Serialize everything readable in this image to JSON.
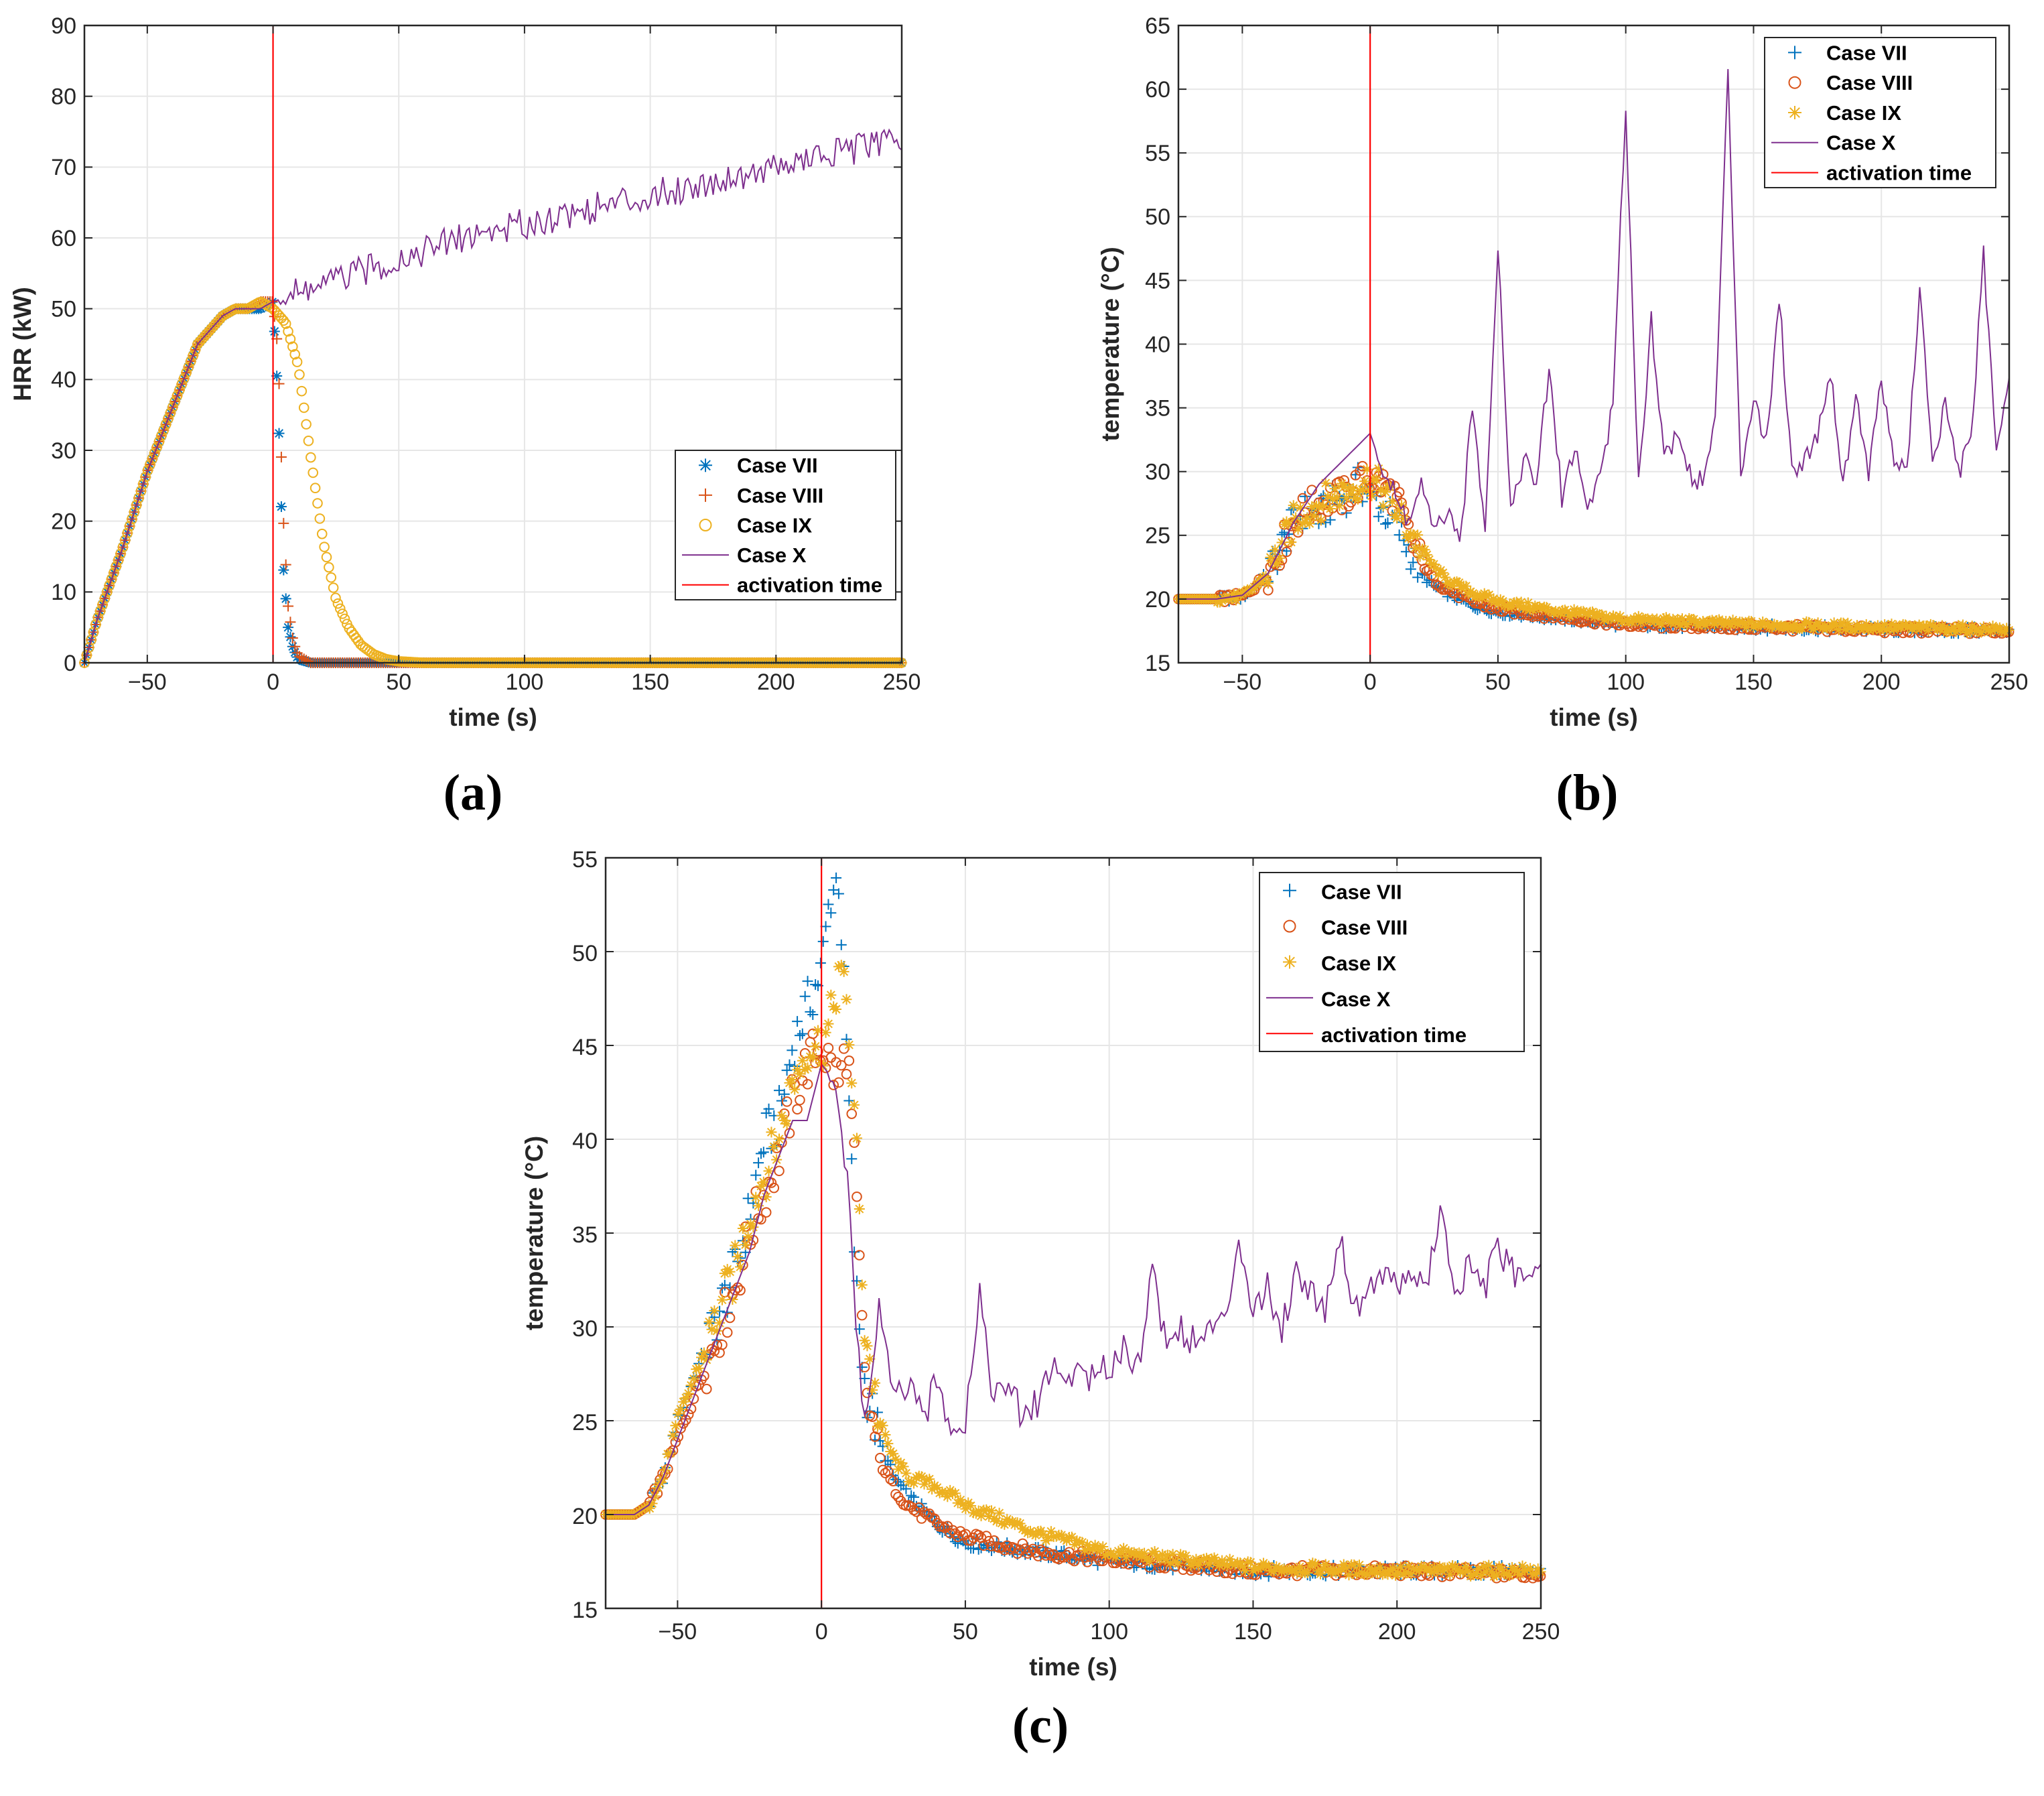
{
  "colors": {
    "case_vii": "#0072BD",
    "case_viii": "#D95319",
    "case_ix": "#EDB120",
    "case_x": "#7E2F8E",
    "activation": "#FF0000",
    "grid": "#E6E6E6",
    "axis": "#262626"
  },
  "chart_data": [
    {
      "id": "a",
      "type": "scatter",
      "panel_label": "(a)",
      "title": "",
      "xlabel": "time (s)",
      "ylabel": "HRR (kW)",
      "xlim": [
        -75,
        250
      ],
      "ylim": [
        0,
        90
      ],
      "xticks": [
        -50,
        0,
        50,
        100,
        150,
        200,
        250
      ],
      "xtick_labels": [
        "−50",
        "0",
        "50",
        "100",
        "150",
        "200",
        "250"
      ],
      "yticks": [
        0,
        10,
        20,
        30,
        40,
        50,
        60,
        70,
        80,
        90
      ],
      "ytick_labels": [
        "0",
        "10",
        "20",
        "30",
        "40",
        "50",
        "60",
        "70",
        "80",
        "90"
      ],
      "grid": true,
      "legend_position": "lower-right",
      "activation_time": 0,
      "series": [
        {
          "name": "Case VII",
          "marker": "asterisk",
          "key": "case_vii",
          "x": [
            -75,
            -70,
            -60,
            -50,
            -40,
            -30,
            -20,
            -15,
            -10,
            -5,
            0,
            2,
            4,
            6,
            8,
            10,
            15,
            20,
            50,
            100,
            150,
            200,
            250
          ],
          "y": [
            0,
            6,
            16,
            27,
            36,
            45,
            49,
            50,
            50,
            50,
            51,
            37,
            14,
            5,
            2,
            0.5,
            0,
            0,
            0,
            0,
            0,
            0,
            0
          ]
        },
        {
          "name": "Case VIII",
          "marker": "plus",
          "key": "case_viii",
          "x": [
            -75,
            -70,
            -60,
            -50,
            -40,
            -30,
            -20,
            -15,
            -10,
            -5,
            0,
            2,
            4,
            6,
            8,
            10,
            15,
            20,
            50,
            100,
            150,
            200,
            250
          ],
          "y": [
            0,
            6,
            16,
            27,
            36,
            45,
            49,
            50,
            50,
            51,
            51,
            44,
            21,
            8,
            3,
            1,
            0,
            0,
            0,
            0,
            0,
            0,
            0
          ]
        },
        {
          "name": "Case IX",
          "marker": "circle",
          "key": "case_ix",
          "x": [
            -75,
            -70,
            -60,
            -50,
            -40,
            -30,
            -20,
            -15,
            -10,
            -5,
            0,
            5,
            10,
            15,
            20,
            25,
            30,
            35,
            40,
            45,
            50,
            60,
            80,
            100,
            150,
            200,
            250
          ],
          "y": [
            0,
            6,
            16,
            27,
            36,
            45,
            49,
            50,
            50,
            51,
            50,
            48,
            42,
            29,
            17,
            9,
            5,
            2.5,
            1.2,
            0.5,
            0.2,
            0,
            0,
            0,
            0,
            0,
            0
          ]
        },
        {
          "name": "Case X",
          "marker": "line",
          "key": "case_x",
          "x": [
            -75,
            -70,
            -60,
            -50,
            -40,
            -30,
            -20,
            -15,
            -10,
            -5,
            0,
            25,
            50,
            75,
            100,
            125,
            150,
            175,
            200,
            225,
            250
          ],
          "y": [
            0,
            6,
            16,
            27,
            36,
            45,
            49,
            50,
            50,
            50,
            51,
            54,
            57,
            60,
            62,
            64,
            66,
            68,
            70,
            72,
            74
          ]
        },
        {
          "name": "activation time",
          "marker": "vline",
          "key": "activation",
          "x": [
            0,
            0
          ],
          "y": [
            0,
            90
          ]
        }
      ]
    },
    {
      "id": "b",
      "type": "scatter",
      "panel_label": "(b)",
      "title": "",
      "xlabel": "time (s)",
      "ylabel": "temperature (°C)",
      "xlim": [
        -75,
        250
      ],
      "ylim": [
        15,
        65
      ],
      "xticks": [
        -50,
        0,
        50,
        100,
        150,
        200,
        250
      ],
      "xtick_labels": [
        "−50",
        "0",
        "50",
        "100",
        "150",
        "200",
        "250"
      ],
      "yticks": [
        15,
        20,
        25,
        30,
        35,
        40,
        45,
        50,
        55,
        60,
        65
      ],
      "ytick_labels": [
        "15",
        "20",
        "25",
        "30",
        "35",
        "40",
        "45",
        "50",
        "55",
        "60",
        "65"
      ],
      "grid": true,
      "legend_position": "top-right",
      "activation_time": 0,
      "series": [
        {
          "name": "Case VII",
          "marker": "plus",
          "key": "case_vii",
          "x": [
            -75,
            -60,
            -50,
            -45,
            -40,
            -35,
            -30,
            -25,
            -20,
            -15,
            -10,
            -5,
            0,
            5,
            10,
            15,
            20,
            25,
            30,
            40,
            50,
            75,
            100,
            150,
            200,
            250
          ],
          "y": [
            20,
            20,
            20.2,
            21,
            22,
            24,
            26,
            27,
            26.5,
            27.5,
            28,
            29,
            28.5,
            27,
            26,
            24,
            22,
            21,
            20.5,
            19.5,
            19,
            18.5,
            18,
            17.8,
            17.6,
            17.5
          ]
        },
        {
          "name": "Case VIII",
          "marker": "circle",
          "key": "case_viii",
          "x": [
            -75,
            -60,
            -50,
            -45,
            -40,
            -35,
            -30,
            -25,
            -20,
            -15,
            -10,
            -5,
            0,
            5,
            10,
            15,
            20,
            25,
            30,
            40,
            50,
            75,
            100,
            150,
            200,
            250
          ],
          "y": [
            20,
            20,
            20.2,
            21,
            22,
            24,
            26,
            27,
            27.5,
            28,
            28,
            29,
            29.5,
            29,
            28,
            25,
            23,
            21.5,
            20.8,
            19.8,
            19.2,
            18.6,
            18,
            17.8,
            17.6,
            17.5
          ]
        },
        {
          "name": "Case IX",
          "marker": "asterisk",
          "key": "case_ix",
          "x": [
            -75,
            -60,
            -50,
            -45,
            -40,
            -35,
            -30,
            -25,
            -20,
            -15,
            -10,
            -5,
            0,
            5,
            10,
            15,
            20,
            25,
            30,
            40,
            50,
            75,
            100,
            150,
            200,
            250
          ],
          "y": [
            20,
            20,
            20.2,
            21,
            22,
            24,
            26,
            27,
            27.5,
            28,
            28.5,
            29,
            29.5,
            28.5,
            27,
            25.5,
            24,
            22.5,
            21.5,
            20.5,
            19.8,
            19,
            18.4,
            18,
            17.8,
            17.6
          ]
        },
        {
          "name": "Case X",
          "marker": "line",
          "key": "case_x",
          "x": [
            -75,
            -60,
            -50,
            -40,
            -30,
            -20,
            -10,
            -5,
            0,
            5,
            10,
            15,
            20,
            25,
            30,
            35,
            40,
            45,
            50,
            55,
            60,
            65,
            70,
            75,
            80,
            85,
            90,
            95,
            100,
            105,
            110,
            115,
            120,
            125,
            130,
            135,
            140,
            145,
            150,
            155,
            160,
            165,
            170,
            175,
            180,
            185,
            190,
            195,
            200,
            205,
            210,
            215,
            220,
            225,
            230,
            235,
            240,
            245,
            250
          ],
          "y": [
            20,
            20,
            20.3,
            22,
            26,
            29,
            31,
            32,
            33,
            30,
            28,
            26,
            29,
            25,
            27,
            24,
            35,
            26,
            48,
            27,
            31,
            29,
            38,
            28,
            32,
            27,
            30,
            35,
            59,
            29,
            42,
            31,
            33,
            30,
            29,
            34,
            61,
            30,
            36,
            32,
            44,
            30,
            31,
            33,
            38,
            29,
            36,
            30,
            37,
            31,
            30,
            44,
            31,
            35,
            30,
            32,
            47,
            31,
            38
          ]
        },
        {
          "name": "activation time",
          "marker": "vline",
          "key": "activation",
          "x": [
            0,
            0
          ],
          "y": [
            15,
            65
          ]
        }
      ]
    },
    {
      "id": "c",
      "type": "scatter",
      "panel_label": "(c)",
      "title": "",
      "xlabel": "time (s)",
      "ylabel": "temperature (°C)",
      "xlim": [
        -75,
        250
      ],
      "ylim": [
        15,
        55
      ],
      "xticks": [
        -50,
        0,
        50,
        100,
        150,
        200,
        250
      ],
      "xtick_labels": [
        "−50",
        "0",
        "50",
        "100",
        "150",
        "200",
        "250"
      ],
      "yticks": [
        15,
        20,
        25,
        30,
        35,
        40,
        45,
        50,
        55
      ],
      "ytick_labels": [
        "15",
        "20",
        "25",
        "30",
        "35",
        "40",
        "45",
        "50",
        "55"
      ],
      "grid": true,
      "legend_position": "top-right",
      "activation_time": 0,
      "series": [
        {
          "name": "Case VII",
          "marker": "plus",
          "key": "case_vii",
          "x": [
            -75,
            -65,
            -60,
            -55,
            -50,
            -45,
            -40,
            -35,
            -30,
            -25,
            -20,
            -15,
            -10,
            -5,
            0,
            3,
            6,
            9,
            12,
            15,
            20,
            25,
            30,
            40,
            50,
            75,
            100,
            150,
            200,
            250
          ],
          "y": [
            20,
            20,
            20.5,
            22,
            25,
            27,
            29,
            31,
            33,
            36,
            40,
            41,
            45,
            47,
            49,
            53,
            54,
            44,
            32,
            27,
            24,
            22,
            21,
            19.5,
            18.5,
            18,
            17.5,
            17,
            17,
            17
          ]
        },
        {
          "name": "Case VIII",
          "marker": "circle",
          "key": "case_viii",
          "x": [
            -75,
            -65,
            -60,
            -55,
            -50,
            -45,
            -40,
            -35,
            -30,
            -25,
            -20,
            -15,
            -10,
            -5,
            0,
            3,
            6,
            9,
            12,
            15,
            20,
            25,
            30,
            40,
            50,
            75,
            100,
            150,
            200,
            250
          ],
          "y": [
            20,
            20,
            20.5,
            22,
            24,
            26,
            28,
            30,
            32,
            35,
            37,
            39,
            42,
            44,
            45,
            44,
            43,
            45,
            37,
            27,
            23,
            21.5,
            20.5,
            19.5,
            18.8,
            18,
            17.6,
            17,
            17,
            16.8
          ]
        },
        {
          "name": "Case IX",
          "marker": "asterisk",
          "key": "case_ix",
          "x": [
            -75,
            -65,
            -60,
            -55,
            -50,
            -45,
            -40,
            -35,
            -30,
            -25,
            -20,
            -15,
            -10,
            -5,
            0,
            3,
            6,
            9,
            12,
            15,
            20,
            25,
            30,
            40,
            50,
            75,
            100,
            150,
            200,
            250
          ],
          "y": [
            20,
            20,
            20.5,
            22,
            25,
            27,
            29,
            31,
            33,
            36,
            38,
            40,
            43,
            45,
            45,
            46,
            49,
            47,
            40,
            30,
            25,
            23,
            22,
            21.5,
            20.5,
            19,
            18,
            17.2,
            17,
            17
          ]
        },
        {
          "name": "Case X",
          "marker": "line",
          "key": "case_x",
          "x": [
            -75,
            -65,
            -60,
            -55,
            -50,
            -45,
            -40,
            -35,
            -30,
            -25,
            -20,
            -15,
            -10,
            -5,
            0,
            5,
            10,
            12,
            15,
            18,
            20,
            25,
            30,
            35,
            40,
            45,
            50,
            55,
            60,
            65,
            70,
            75,
            80,
            85,
            90,
            95,
            100,
            105,
            110,
            115,
            120,
            125,
            130,
            135,
            140,
            145,
            150,
            155,
            160,
            165,
            170,
            175,
            180,
            185,
            190,
            195,
            200,
            205,
            210,
            215,
            220,
            225,
            230,
            235,
            240,
            245,
            250
          ],
          "y": [
            20,
            20,
            20.5,
            22,
            24,
            26,
            28,
            30,
            32,
            34,
            37,
            39,
            41,
            41,
            44,
            43,
            36,
            30,
            25,
            28,
            31,
            26,
            27,
            25,
            27,
            25,
            25,
            32,
            26,
            27,
            25,
            26,
            28,
            27,
            28,
            27,
            28,
            29,
            28,
            33,
            29,
            30,
            29,
            30,
            30,
            35,
            31,
            32,
            30,
            33,
            32,
            31,
            35,
            31,
            32,
            33,
            32,
            33,
            32,
            36,
            32,
            33,
            32,
            34,
            33,
            32,
            34
          ]
        },
        {
          "name": "activation time",
          "marker": "vline",
          "key": "activation",
          "x": [
            0,
            0
          ],
          "y": [
            15,
            55
          ]
        }
      ]
    }
  ]
}
